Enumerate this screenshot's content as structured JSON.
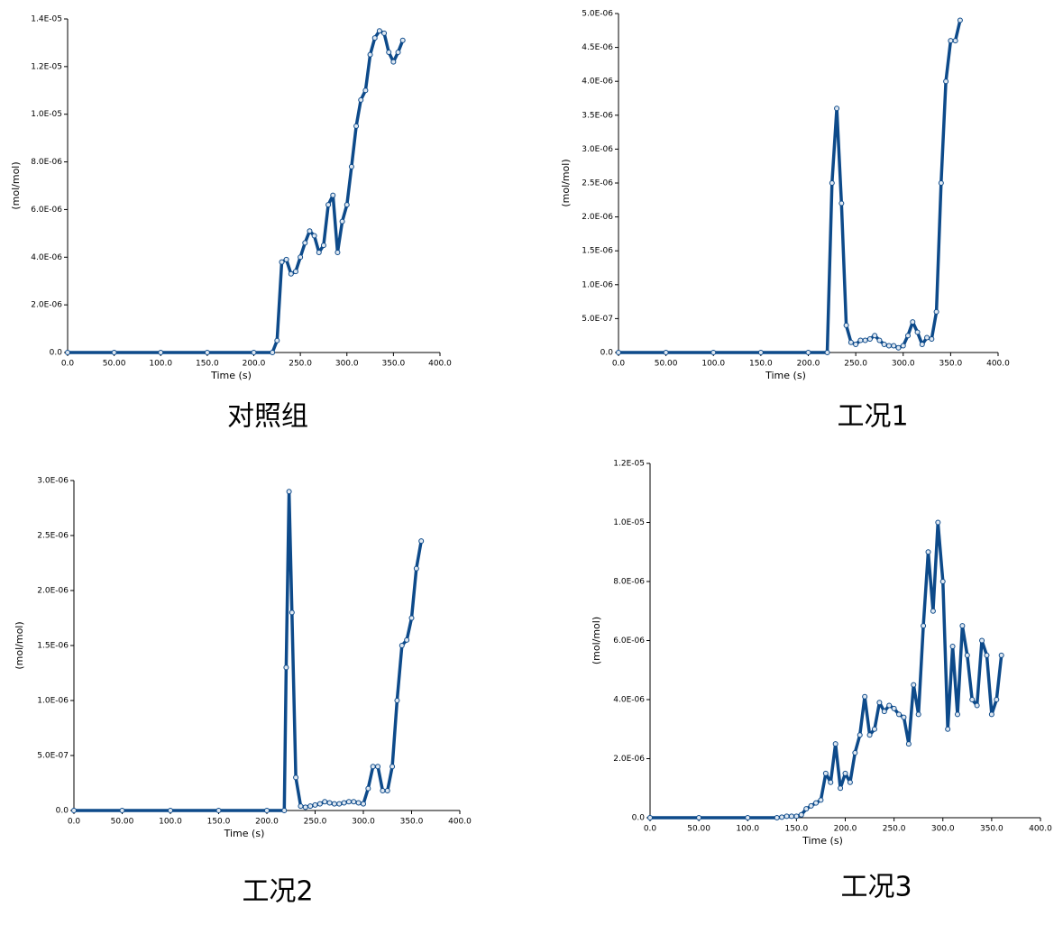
{
  "chart_data": [
    {
      "type": "line",
      "title": "对照组",
      "xlabel": "Time (s)",
      "ylabel": "(mol/mol)",
      "color": "#0d4a8a",
      "x": [
        0,
        50,
        100,
        150,
        200,
        220,
        225,
        230,
        235,
        240,
        245,
        250,
        255,
        260,
        265,
        270,
        275,
        280,
        285,
        290,
        295,
        300,
        305,
        310,
        315,
        320,
        325,
        330,
        335,
        340,
        345,
        350,
        355,
        360
      ],
      "series": [
        {
          "name": "对照组",
          "color": "#0d4a8a",
          "values": [
            0,
            0,
            0,
            0,
            0,
            0,
            5e-07,
            3.8e-06,
            3.9e-06,
            3.3e-06,
            3.4e-06,
            4e-06,
            4.6e-06,
            5.1e-06,
            4.9e-06,
            4.2e-06,
            4.5e-06,
            6.2e-06,
            6.6e-06,
            4.2e-06,
            5.5e-06,
            6.2e-06,
            7.8e-06,
            9.5e-06,
            1.06e-05,
            1.1e-05,
            1.25e-05,
            1.32e-05,
            1.35e-05,
            1.34e-05,
            1.26e-05,
            1.22e-05,
            1.26e-05,
            1.31e-05
          ]
        }
      ],
      "xlim": [
        0,
        400
      ],
      "xticks": [
        {
          "value": 0,
          "label": "0.0"
        },
        {
          "value": 50,
          "label": "50.00"
        },
        {
          "value": 100,
          "label": "100.0"
        },
        {
          "value": 150,
          "label": "150.0"
        },
        {
          "value": 200,
          "label": "200.0"
        },
        {
          "value": 250,
          "label": "250.0"
        },
        {
          "value": 300,
          "label": "300.0"
        },
        {
          "value": 350,
          "label": "350.0"
        },
        {
          "value": 400,
          "label": "400.0"
        }
      ],
      "ylim": [
        0,
        1.4e-05
      ],
      "yticks": [
        {
          "value": 0,
          "label": "0.0"
        },
        {
          "value": 2e-06,
          "label": "2.0E-06"
        },
        {
          "value": 4e-06,
          "label": "4.0E-06"
        },
        {
          "value": 6e-06,
          "label": "6.0E-06"
        },
        {
          "value": 8e-06,
          "label": "8.0E-06"
        },
        {
          "value": 1e-05,
          "label": "1.0E-05"
        },
        {
          "value": 1.2e-05,
          "label": "1.2E-05"
        },
        {
          "value": 1.4e-05,
          "label": "1.4E-05"
        }
      ]
    },
    {
      "type": "line",
      "title": "工况1",
      "xlabel": "Time (s)",
      "ylabel": "(mol/mol)",
      "color": "#0d4a8a",
      "x": [
        0,
        50,
        100,
        150,
        200,
        220,
        225,
        230,
        235,
        240,
        245,
        250,
        255,
        260,
        265,
        270,
        275,
        280,
        285,
        290,
        295,
        300,
        305,
        310,
        315,
        320,
        325,
        330,
        335,
        340,
        345,
        350,
        355,
        360
      ],
      "series": [
        {
          "name": "工况1",
          "color": "#0d4a8a",
          "values": [
            0,
            0,
            0,
            0,
            0,
            0,
            2.5e-06,
            3.6e-06,
            2.2e-06,
            4e-07,
            1.5e-07,
            1.2e-07,
            1.8e-07,
            1.8e-07,
            2e-07,
            2.5e-07,
            1.8e-07,
            1.2e-07,
            1e-07,
            1e-07,
            7e-08,
            1e-07,
            2.5e-07,
            4.5e-07,
            3e-07,
            1.2e-07,
            2.2e-07,
            2e-07,
            6e-07,
            2.5e-06,
            4e-06,
            4.6e-06,
            4.6e-06,
            4.9e-06
          ]
        }
      ],
      "xlim": [
        0,
        400
      ],
      "xticks": [
        {
          "value": 0,
          "label": "0.0"
        },
        {
          "value": 50,
          "label": "50.00"
        },
        {
          "value": 100,
          "label": "100.0"
        },
        {
          "value": 150,
          "label": "150.0"
        },
        {
          "value": 200,
          "label": "200.0"
        },
        {
          "value": 250,
          "label": "250.0"
        },
        {
          "value": 300,
          "label": "300.0"
        },
        {
          "value": 350,
          "label": "350.0"
        },
        {
          "value": 400,
          "label": "400.0"
        }
      ],
      "ylim": [
        0,
        5e-06
      ],
      "yticks": [
        {
          "value": 0,
          "label": "0.0"
        },
        {
          "value": 5e-07,
          "label": "5.0E-07"
        },
        {
          "value": 1e-06,
          "label": "1.0E-06"
        },
        {
          "value": 1.5e-06,
          "label": "1.5E-06"
        },
        {
          "value": 2e-06,
          "label": "2.0E-06"
        },
        {
          "value": 2.5e-06,
          "label": "2.5E-06"
        },
        {
          "value": 3e-06,
          "label": "3.0E-06"
        },
        {
          "value": 3.5e-06,
          "label": "3.5E-06"
        },
        {
          "value": 4e-06,
          "label": "4.0E-06"
        },
        {
          "value": 4.5e-06,
          "label": "4.5E-06"
        },
        {
          "value": 5e-06,
          "label": "5.0E-06"
        }
      ]
    },
    {
      "type": "line",
      "title": "工况2",
      "xlabel": "Time (s)",
      "ylabel": "(mol/mol)",
      "color": "#0d4a8a",
      "x": [
        0,
        50,
        100,
        150,
        200,
        218,
        220,
        223,
        226,
        230,
        235,
        240,
        245,
        250,
        255,
        260,
        265,
        270,
        275,
        280,
        285,
        290,
        295,
        300,
        305,
        310,
        315,
        320,
        325,
        330,
        335,
        340,
        345,
        350,
        355,
        360
      ],
      "series": [
        {
          "name": "工况2",
          "color": "#0d4a8a",
          "values": [
            0,
            0,
            0,
            0,
            0,
            0,
            1.3e-06,
            2.9e-06,
            1.8e-06,
            3e-07,
            4e-08,
            3e-08,
            4e-08,
            5e-08,
            6e-08,
            8e-08,
            7e-08,
            6e-08,
            6e-08,
            7e-08,
            8e-08,
            8e-08,
            7e-08,
            6e-08,
            2e-07,
            4e-07,
            4e-07,
            1.8e-07,
            1.8e-07,
            4e-07,
            1e-06,
            1.5e-06,
            1.55e-06,
            1.75e-06,
            2.2e-06,
            2.45e-06
          ]
        }
      ],
      "xlim": [
        0,
        400
      ],
      "xticks": [
        {
          "value": 0,
          "label": "0.0"
        },
        {
          "value": 50,
          "label": "50.00"
        },
        {
          "value": 100,
          "label": "100.0"
        },
        {
          "value": 150,
          "label": "150.0"
        },
        {
          "value": 200,
          "label": "200.0"
        },
        {
          "value": 250,
          "label": "250.0"
        },
        {
          "value": 300,
          "label": "300.0"
        },
        {
          "value": 350,
          "label": "350.0"
        },
        {
          "value": 400,
          "label": "400.0"
        }
      ],
      "ylim": [
        0,
        3e-06
      ],
      "yticks": [
        {
          "value": 0,
          "label": "0.0"
        },
        {
          "value": 5e-07,
          "label": "5.0E-07"
        },
        {
          "value": 1e-06,
          "label": "1.0E-06"
        },
        {
          "value": 1.5e-06,
          "label": "1.5E-06"
        },
        {
          "value": 2e-06,
          "label": "2.0E-06"
        },
        {
          "value": 2.5e-06,
          "label": "2.5E-06"
        },
        {
          "value": 3e-06,
          "label": "3.0E-06"
        }
      ]
    },
    {
      "type": "line",
      "title": "工况3",
      "xlabel": "Time (s)",
      "ylabel": "(mol/mol)",
      "color": "#0d4a8a",
      "x": [
        0,
        50,
        100,
        130,
        135,
        140,
        145,
        150,
        155,
        160,
        165,
        170,
        175,
        180,
        185,
        190,
        195,
        200,
        205,
        210,
        215,
        220,
        225,
        230,
        235,
        240,
        245,
        250,
        255,
        260,
        265,
        270,
        275,
        280,
        285,
        290,
        295,
        300,
        305,
        310,
        315,
        320,
        325,
        330,
        335,
        340,
        345,
        350,
        355,
        360
      ],
      "series": [
        {
          "name": "工况3",
          "color": "#0d4a8a",
          "values": [
            0,
            0,
            0,
            0,
            2e-08,
            5e-08,
            5e-08,
            5e-08,
            1e-07,
            3e-07,
            4e-07,
            5e-07,
            6e-07,
            1.5e-06,
            1.2e-06,
            2.5e-06,
            1e-06,
            1.5e-06,
            1.2e-06,
            2.2e-06,
            2.8e-06,
            4.1e-06,
            2.8e-06,
            3e-06,
            3.9e-06,
            3.6e-06,
            3.8e-06,
            3.7e-06,
            3.5e-06,
            3.4e-06,
            2.5e-06,
            4.5e-06,
            3.5e-06,
            6.5e-06,
            9e-06,
            7e-06,
            1e-05,
            8e-06,
            3e-06,
            5.8e-06,
            3.5e-06,
            6.5e-06,
            5.5e-06,
            4e-06,
            3.8e-06,
            6e-06,
            5.5e-06,
            3.5e-06,
            4e-06,
            5.5e-06
          ]
        }
      ],
      "xlim": [
        0,
        400
      ],
      "xticks": [
        {
          "value": 0,
          "label": "0.0"
        },
        {
          "value": 50,
          "label": "50.00"
        },
        {
          "value": 100,
          "label": "100.0"
        },
        {
          "value": 150,
          "label": "150.0"
        },
        {
          "value": 200,
          "label": "200.0"
        },
        {
          "value": 250,
          "label": "250.0"
        },
        {
          "value": 300,
          "label": "300.0"
        },
        {
          "value": 350,
          "label": "350.0"
        },
        {
          "value": 400,
          "label": "400.0"
        }
      ],
      "ylim": [
        0,
        1.2e-05
      ],
      "yticks": [
        {
          "value": 0,
          "label": "0.0"
        },
        {
          "value": 2e-06,
          "label": "2.0E-06"
        },
        {
          "value": 4e-06,
          "label": "4.0E-06"
        },
        {
          "value": 6e-06,
          "label": "6.0E-06"
        },
        {
          "value": 8e-06,
          "label": "8.0E-06"
        },
        {
          "value": 1e-05,
          "label": "1.0E-05"
        },
        {
          "value": 1.2e-05,
          "label": "1.2E-05"
        }
      ]
    }
  ]
}
